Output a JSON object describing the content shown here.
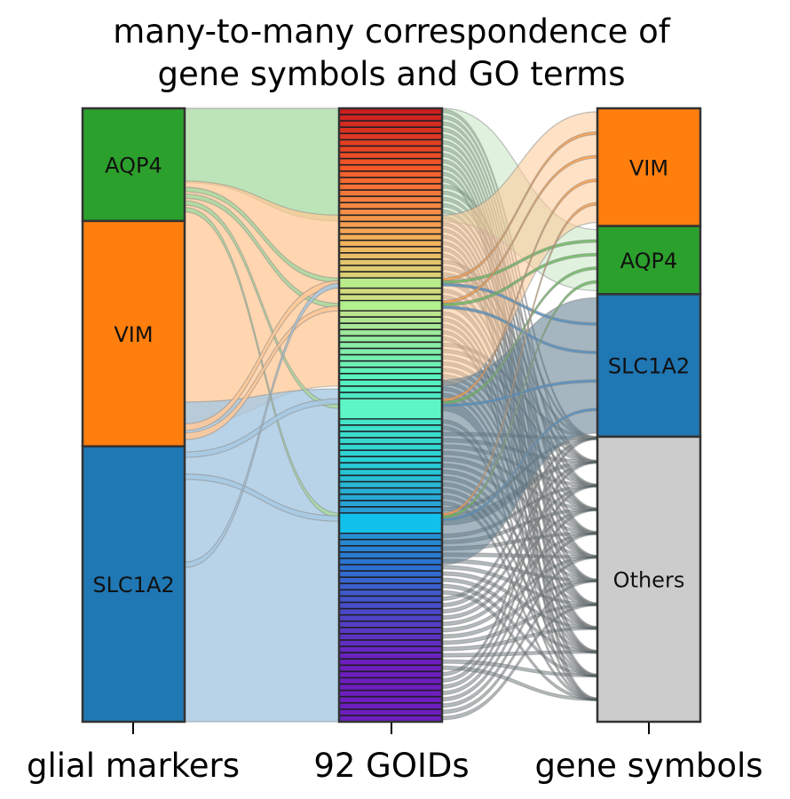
{
  "chart_data": {
    "type": "alluvial",
    "title_lines": [
      "many-to-many correspondence of",
      "gene symbols and GO terms"
    ],
    "axes": [
      "glial markers",
      "92 GOIDs",
      "gene symbols"
    ],
    "go_count": 92,
    "left_blocks": [
      {
        "label": "AQP4",
        "weight": 18,
        "color": "#2ca02c"
      },
      {
        "label": "VIM",
        "weight": 36,
        "color": "#ff7f0e"
      },
      {
        "label": "SLC1A2",
        "weight": 44,
        "color": "#1f77b4"
      }
    ],
    "right_blocks": [
      {
        "label": "VIM",
        "weight": 19,
        "color": "#ff7f0e"
      },
      {
        "label": "AQP4",
        "weight": 11,
        "color": "#2ca02c"
      },
      {
        "label": "SLC1A2",
        "weight": 23,
        "color": "#1f77b4"
      },
      {
        "label": "Others",
        "weight": 46,
        "color": "#cccccc"
      }
    ],
    "highlighted_goids": [
      {
        "index": 27,
        "span": 1.6,
        "color": "#b9ec8a"
      },
      {
        "index": 30,
        "span": 1.6,
        "color": "#b3f08e"
      },
      {
        "index": 45,
        "span": 3.2,
        "color": "#5ef5c6"
      },
      {
        "index": 61,
        "span": 3.2,
        "color": "#12c1eb"
      }
    ],
    "colors": {
      "flow_aqp4": "#a7d9a0",
      "flow_vim": "#ffc896",
      "flow_slc1a2": "#a6c8e2",
      "flow_other": "#4a5a60",
      "block_border": "#333333"
    }
  }
}
